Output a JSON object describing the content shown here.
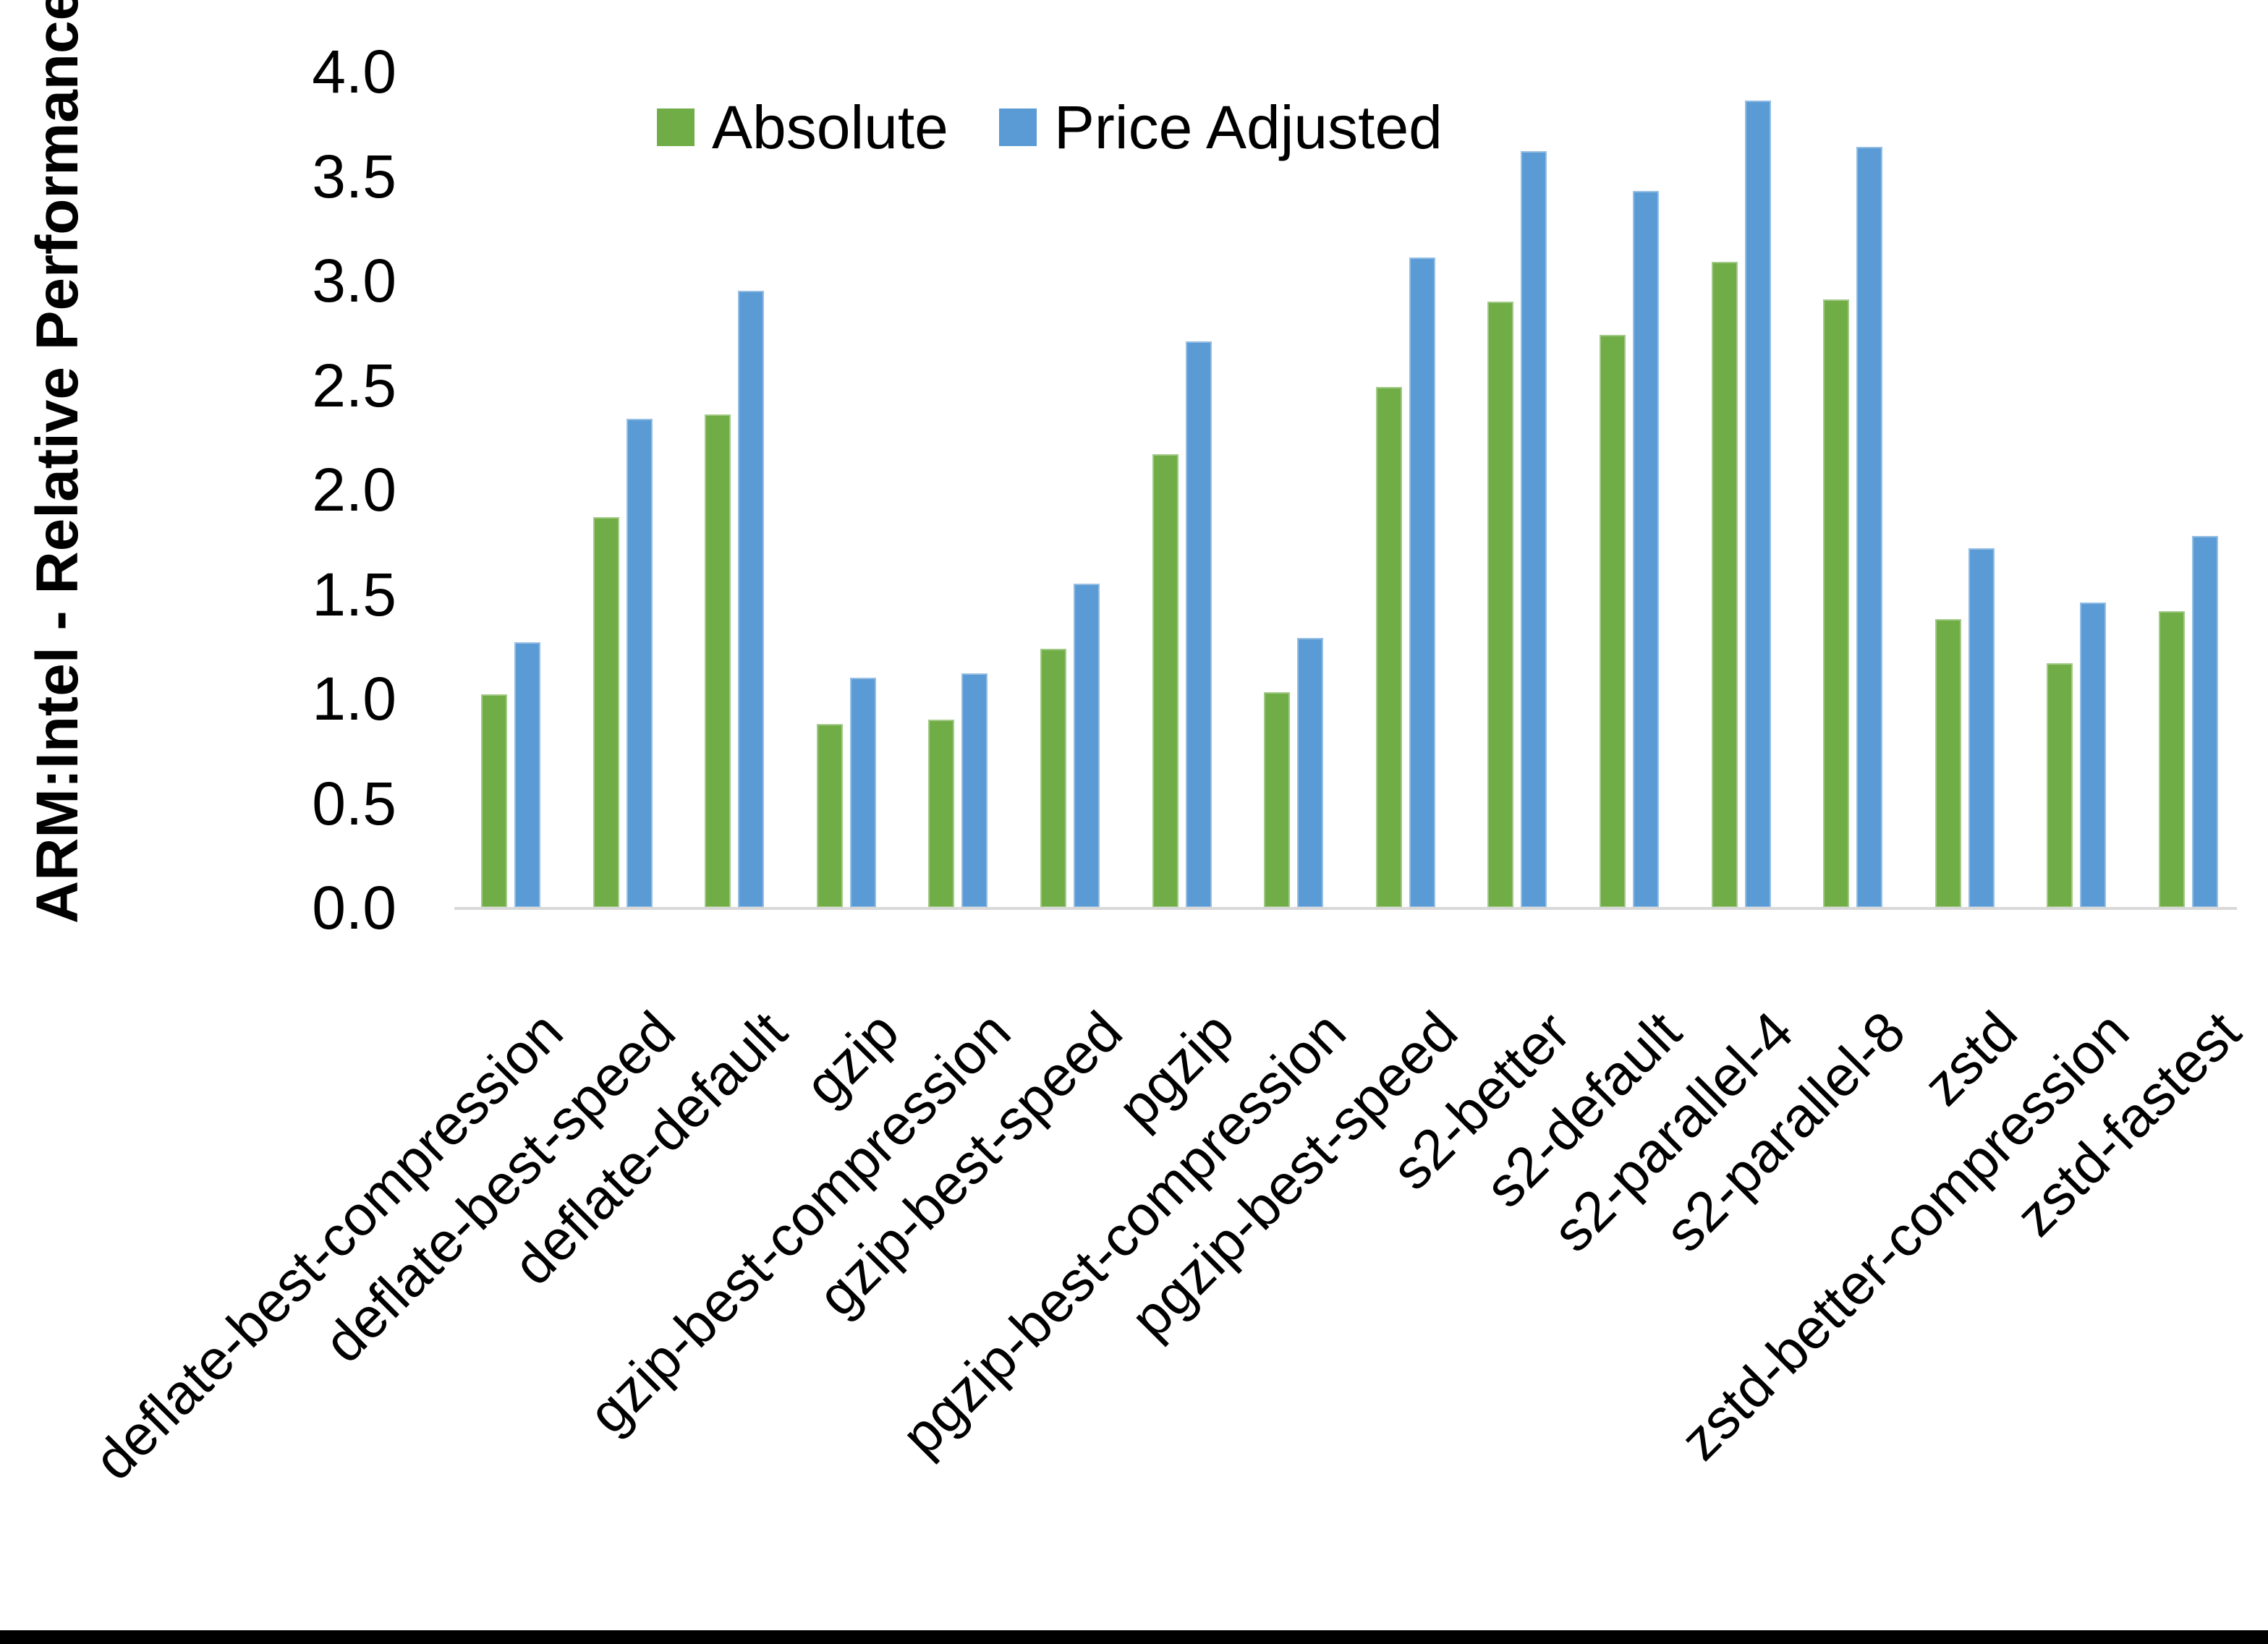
{
  "chart_data": {
    "type": "bar",
    "title": "",
    "ylabel": "ARM:Intel - Relative Performance",
    "xlabel": "",
    "ylim": [
      0.0,
      4.0
    ],
    "ytick_step": 0.5,
    "ytick_labels": [
      "0.0",
      "0.5",
      "1.0",
      "1.5",
      "2.0",
      "2.5",
      "3.0",
      "3.5",
      "4.0"
    ],
    "grid": false,
    "legend_position": "top-center",
    "categories": [
      "deflate-best-compression",
      "deflate-best-speed",
      "deflate-default",
      "gzip",
      "gzip-best-compression",
      "gzip-best-speed",
      "pgzip",
      "pgzip-best-compression",
      "pgzip-best-speed",
      "s2-better",
      "s2-default",
      "s2-parallel-4",
      "s2-parallel-8",
      "zstd",
      "zstd-better-compression",
      "zstd-fastest"
    ],
    "series": [
      {
        "name": "Absolute",
        "color": "#70AD47",
        "values": [
          1.02,
          1.87,
          2.36,
          0.88,
          0.9,
          1.24,
          2.17,
          1.03,
          2.49,
          2.9,
          2.74,
          3.09,
          2.91,
          1.38,
          1.17,
          1.42
        ]
      },
      {
        "name": "Price Adjusted",
        "color": "#5B9BD5",
        "values": [
          1.27,
          2.34,
          2.95,
          1.1,
          1.12,
          1.55,
          2.71,
          1.29,
          3.11,
          3.62,
          3.43,
          3.86,
          3.64,
          1.72,
          1.46,
          1.78
        ]
      }
    ]
  },
  "colors": {
    "axis_line": "#D9D9D9",
    "text": "#000000",
    "background": "#FFFFFF",
    "bottom_bar": "#000000"
  }
}
